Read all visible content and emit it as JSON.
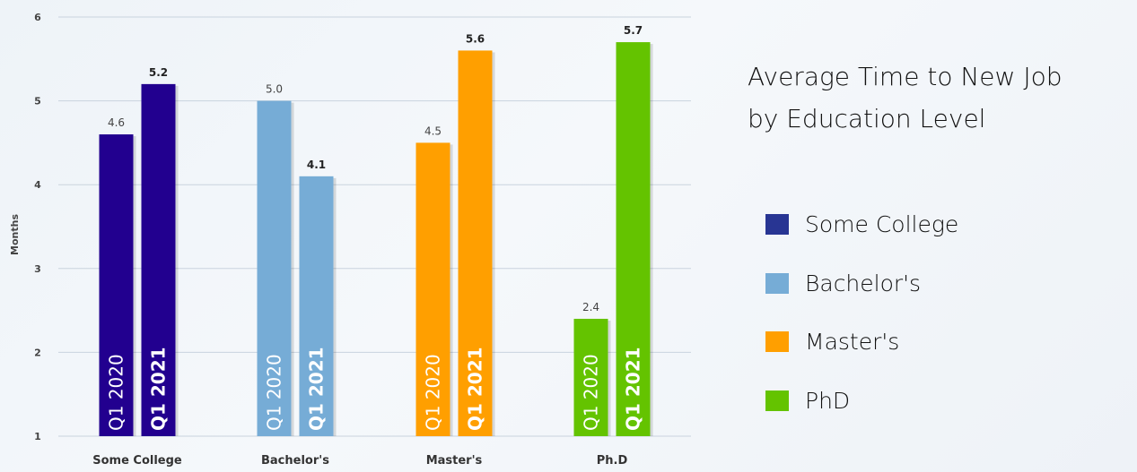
{
  "chart_data": {
    "type": "bar",
    "title": [
      "Average Time to New Job",
      "by Education Level"
    ],
    "ylabel": "Months",
    "ylim": [
      1,
      6
    ],
    "yticks": [
      1,
      2,
      3,
      4,
      5,
      6
    ],
    "categories": [
      "Some College",
      "Bachelor's",
      "Master's",
      "Ph.D"
    ],
    "series": [
      {
        "name": "Q1 2020",
        "values": [
          4.6,
          5.0,
          4.5,
          2.4
        ]
      },
      {
        "name": "Q1 2021",
        "values": [
          5.2,
          4.1,
          5.6,
          5.7
        ]
      }
    ],
    "bar_colors": [
      "#22008f",
      "#76acd6",
      "#ff9f00",
      "#64c300"
    ],
    "grid": true
  },
  "legend": {
    "items": [
      {
        "label": "Some College",
        "color": "#283593"
      },
      {
        "label": "Bachelor's",
        "color": "#76acd6"
      },
      {
        "label": "Master's",
        "color": "#ff9f00"
      },
      {
        "label": "PhD",
        "color": "#64c300"
      }
    ]
  }
}
